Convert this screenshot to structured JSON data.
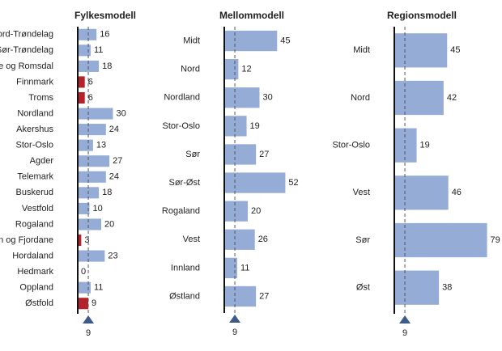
{
  "chart_data": [
    {
      "type": "bar",
      "title": "Fylkesmodell",
      "categories": [
        "Nord-Trøndelag",
        "Sør-Trøndelag",
        "Møre og Romsdal",
        "Finnmark",
        "Troms",
        "Nordland",
        "Akershus",
        "Stor-Oslo",
        "Agder",
        "Telemark",
        "Buskerud",
        "Vestfold",
        "Rogaland",
        "Sogn og Fjordane",
        "Hordaland",
        "Hedmark",
        "Oppland",
        "Østfold"
      ],
      "values": [
        16,
        11,
        18,
        6,
        6,
        30,
        24,
        13,
        27,
        24,
        18,
        10,
        20,
        3,
        23,
        0,
        11,
        9
      ],
      "colors": [
        "#95acd6",
        "#95acd6",
        "#95acd6",
        "#b5232a",
        "#b5232a",
        "#95acd6",
        "#95acd6",
        "#95acd6",
        "#95acd6",
        "#95acd6",
        "#95acd6",
        "#95acd6",
        "#95acd6",
        "#b5232a",
        "#95acd6",
        "#95acd6",
        "#95acd6",
        "#b5232a"
      ],
      "xlim": [
        0,
        80
      ],
      "reference": 9
    },
    {
      "type": "bar",
      "title": "Mellommodell",
      "categories": [
        "Midt",
        "Nord",
        "Nordland",
        "Stor-Oslo",
        "Sør",
        "Sør-Øst",
        "Rogaland",
        "Vest",
        "Innland",
        "Østland"
      ],
      "values": [
        45,
        12,
        30,
        19,
        27,
        52,
        20,
        26,
        11,
        27
      ],
      "colors": [
        "#95acd6",
        "#95acd6",
        "#95acd6",
        "#95acd6",
        "#95acd6",
        "#95acd6",
        "#95acd6",
        "#95acd6",
        "#95acd6",
        "#95acd6"
      ],
      "xlim": [
        0,
        80
      ],
      "reference": 9
    },
    {
      "type": "bar",
      "title": "Regionsmodell",
      "categories": [
        "Midt",
        "Nord",
        "Stor-Oslo",
        "Vest",
        "Sør",
        "Øst"
      ],
      "values": [
        45,
        42,
        19,
        46,
        79,
        38
      ],
      "colors": [
        "#95acd6",
        "#95acd6",
        "#95acd6",
        "#95acd6",
        "#95acd6",
        "#95acd6"
      ],
      "xlim": [
        0,
        80
      ],
      "reference": 9
    }
  ]
}
